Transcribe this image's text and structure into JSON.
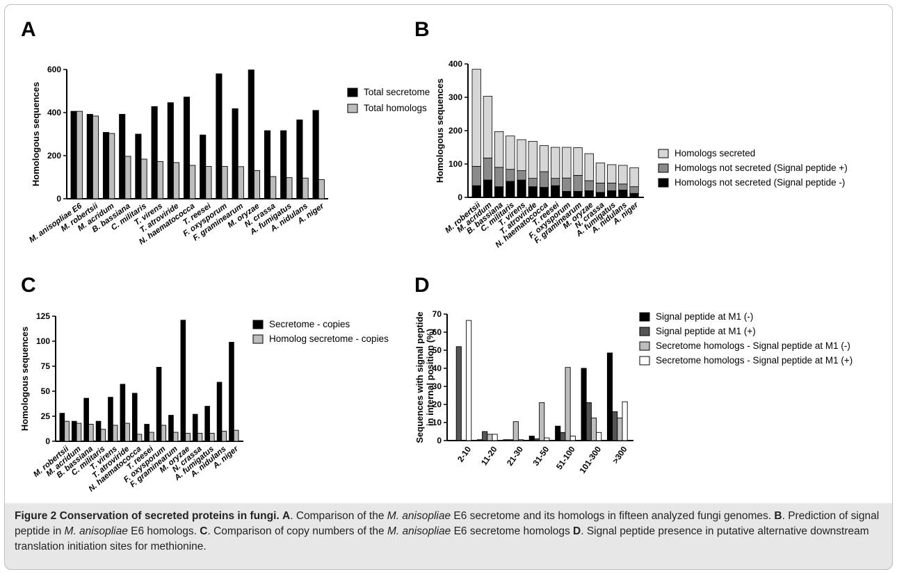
{
  "figure": {
    "caption": {
      "label": "Figure 2",
      "title": "Conservation of secreted proteins in fungi.",
      "parts": [
        [
          {
            "t": " "
          },
          {
            "t": "A",
            "b": true
          },
          {
            "t": ". Comparison of the "
          },
          {
            "t": "M. anisopliae",
            "i": true
          },
          {
            "t": " E6 secretome and its homologs in fifteen analyzed fungi genomes. "
          }
        ],
        [
          {
            "t": "B",
            "b": true
          },
          {
            "t": ". Prediction of signal peptide in "
          },
          {
            "t": "M. anisopliae",
            "i": true
          },
          {
            "t": " E6 homologs. "
          }
        ],
        [
          {
            "t": "C",
            "b": true
          },
          {
            "t": ". Comparison of copy numbers of the "
          },
          {
            "t": "M. anisopliae",
            "i": true
          },
          {
            "t": " E6 secretome homologs "
          }
        ],
        [
          {
            "t": "D",
            "b": true
          },
          {
            "t": ". Signal peptide presence in putative alternative downstream translation initiation sites for methionine."
          }
        ]
      ]
    }
  },
  "chart_data": [
    {
      "panel": "A",
      "type": "bar",
      "ylabel": "Homologous sequences",
      "ylim": [
        0,
        600
      ],
      "yticks": [
        0,
        200,
        400,
        600
      ],
      "categories": [
        "M. anisopliae E6",
        "M. robertsii",
        "M. acridum",
        "B. bassiana",
        "C. militaris",
        "T. virens",
        "T. atroviride",
        "N. haematococca",
        "T. reesei",
        "F. oxysporum",
        "F. graminearum",
        "M. oryzae",
        "N. crassa",
        "A. fumigatus",
        "A. nidulans",
        "A. niger"
      ],
      "series": [
        {
          "name": "Total secretome",
          "color": "#000000",
          "values": [
            406,
            392,
            308,
            392,
            300,
            428,
            446,
            472,
            296,
            580,
            418,
            598,
            316,
            316,
            366,
            410
          ]
        },
        {
          "name": "Total homologs",
          "color": "#bdbdbd",
          "values": [
            406,
            384,
            303,
            197,
            184,
            173,
            168,
            155,
            150,
            150,
            149,
            131,
            103,
            98,
            96,
            89
          ]
        }
      ],
      "legend": "right"
    },
    {
      "panel": "B",
      "type": "bar",
      "stacked": true,
      "ylabel": "Homologous sequences",
      "ylim": [
        0,
        400
      ],
      "yticks": [
        0,
        100,
        200,
        300,
        400
      ],
      "categories": [
        "M. robertsii",
        "M. acridum",
        "B. bassiana",
        "C. militaris",
        "T. virens",
        "T. atroviride",
        "N. haematococca",
        "T. reesei",
        "F. oxysporum",
        "F. graminearum",
        "M. oryzae",
        "N. crassa",
        "A. fumigatus",
        "A. nidulans",
        "A. niger"
      ],
      "series": [
        {
          "name": "Homologs not secreted (Signal peptide -)",
          "color": "#000000",
          "values": [
            35,
            52,
            32,
            48,
            52,
            32,
            30,
            35,
            18,
            18,
            20,
            15,
            20,
            22,
            12
          ]
        },
        {
          "name": "Homologs not secreted (Signal peptide +)",
          "color": "#8a8a8a",
          "values": [
            58,
            66,
            58,
            36,
            28,
            25,
            47,
            22,
            40,
            48,
            30,
            28,
            23,
            18,
            20
          ]
        },
        {
          "name": "Homologs secreted",
          "color": "#d6d6d6",
          "values": [
            291,
            185,
            107,
            100,
            93,
            111,
            78,
            93,
            92,
            83,
            81,
            60,
            55,
            56,
            57
          ]
        }
      ],
      "legend": "right"
    },
    {
      "panel": "C",
      "type": "bar",
      "ylabel": "Homologous sequences",
      "ylim": [
        0,
        125
      ],
      "yticks": [
        0,
        25,
        50,
        75,
        100,
        125
      ],
      "categories": [
        "M. robertsii",
        "M. acridum",
        "B. bassiana",
        "C. militaris",
        "T. virens",
        "T. atroviride",
        "N. haematococca",
        "T. reesei",
        "F. oxysporum",
        "F. graminearum",
        "M. oryzae",
        "N. crassa",
        "A. fumigatus",
        "A. nidulans",
        "A. niger"
      ],
      "series": [
        {
          "name": "Secretome - copies",
          "color": "#000000",
          "values": [
            28,
            20,
            43,
            20,
            44,
            57,
            48,
            17,
            74,
            26,
            121,
            27,
            35,
            59,
            99
          ]
        },
        {
          "name": "Homolog secretome - copies",
          "color": "#bdbdbd",
          "values": [
            20,
            18,
            17,
            12,
            16,
            18,
            7,
            9,
            16,
            9,
            8,
            8,
            8,
            10,
            11
          ]
        }
      ],
      "legend": "right"
    },
    {
      "panel": "D",
      "type": "bar",
      "ylabel": "Sequences with signal peptide in internal position (%)",
      "ylim": [
        0,
        70
      ],
      "yticks": [
        0,
        10,
        20,
        30,
        40,
        50,
        60,
        70
      ],
      "categories": [
        "2-10",
        "11-20",
        "21-30",
        "31-50",
        "51-100",
        "101-300",
        ">300"
      ],
      "series": [
        {
          "name": "Signal peptide at M1 (-)",
          "color": "#000000",
          "values": [
            0,
            0.5,
            0.5,
            2.5,
            8,
            40,
            48.5
          ]
        },
        {
          "name": "Signal peptide at M1 (+)",
          "color": "#555555",
          "values": [
            52,
            5,
            0.5,
            1,
            4.5,
            21,
            16
          ]
        },
        {
          "name": "Secretome homologs - Signal peptide at M1 (-)",
          "color": "#bdbdbd",
          "values": [
            0,
            3.5,
            10.5,
            21,
            40.5,
            12.5,
            12.5
          ]
        },
        {
          "name": "Secretome homologs - Signal peptide at M1 (+)",
          "color": "#ffffff",
          "values": [
            66.5,
            3.5,
            0.5,
            1.5,
            2.5,
            4.5,
            21.5
          ]
        }
      ],
      "legend": "right"
    }
  ]
}
